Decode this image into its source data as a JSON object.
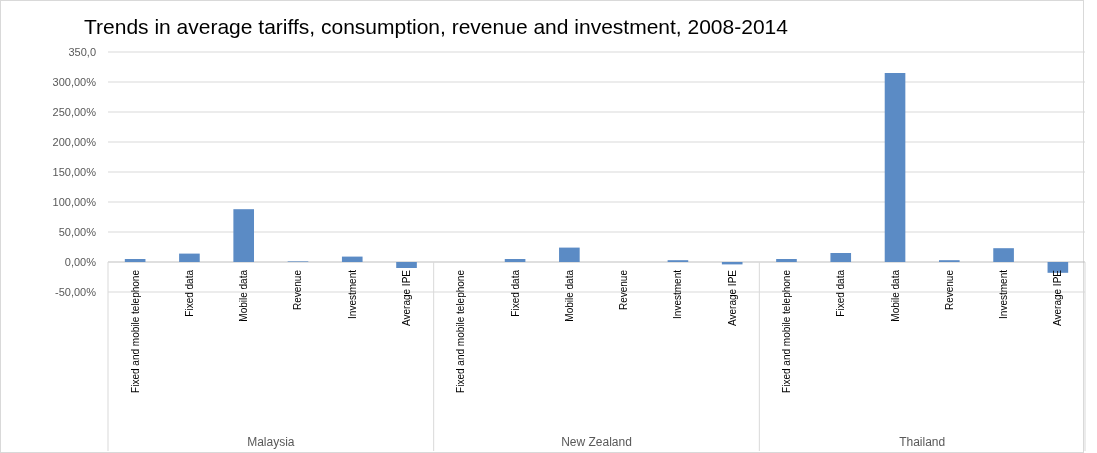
{
  "chart_data": {
    "type": "bar",
    "title": "Trends in average tariffs, consumption, revenue and investment, 2008-2014",
    "categories": [
      "Fixed and mobile telephone",
      "Fixed data",
      "Mobile data",
      "Revenue",
      "Investment",
      "Average IPE",
      "Fixed and mobile telephone",
      "Fixed data",
      "Mobile data",
      "Revenue",
      "Investment",
      "Average IPE",
      "Fixed and mobile telephone",
      "Fixed data",
      "Mobile data",
      "Revenue",
      "Investment",
      "Average IPE"
    ],
    "values": [
      5,
      14,
      88,
      1,
      9,
      -10,
      0,
      5,
      24,
      0,
      3,
      -4,
      5,
      15,
      315,
      3,
      23,
      -18
    ],
    "color": "#5b8bc5",
    "ylim": [
      -50,
      350
    ],
    "yticks": [
      {
        "value": -50,
        "label": "-50,00%"
      },
      {
        "value": 0,
        "label": "0,00%"
      },
      {
        "value": 50,
        "label": "50,00%"
      },
      {
        "value": 100,
        "label": "100,00%"
      },
      {
        "value": 150,
        "label": "150,00%"
      },
      {
        "value": 200,
        "label": "200,00%"
      },
      {
        "value": 250,
        "label": "250,00%"
      },
      {
        "value": 300,
        "label": "300,00%"
      },
      {
        "value": 350,
        "label": "350,0"
      }
    ],
    "grid": "y",
    "annotations": [
      "Malaysia",
      "New Zealand",
      "Thailand"
    ]
  }
}
